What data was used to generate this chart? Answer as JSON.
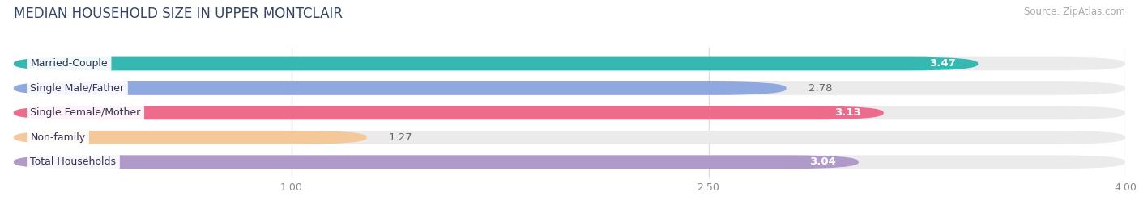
{
  "title": "MEDIAN HOUSEHOLD SIZE IN UPPER MONTCLAIR",
  "source": "Source: ZipAtlas.com",
  "categories": [
    "Married-Couple",
    "Single Male/Father",
    "Single Female/Mother",
    "Non-family",
    "Total Households"
  ],
  "values": [
    3.47,
    2.78,
    3.13,
    1.27,
    3.04
  ],
  "bar_colors": [
    "#35b8b2",
    "#90a8e0",
    "#ee6b8b",
    "#f5c89a",
    "#b09aca"
  ],
  "value_in_bar": [
    true,
    false,
    true,
    false,
    true
  ],
  "xmin": 0.0,
  "xmax": 4.0,
  "xtick_values": [
    1.0,
    2.5,
    4.0
  ],
  "xtick_labels": [
    "1.00",
    "2.50",
    "4.00"
  ],
  "title_fontsize": 12,
  "source_fontsize": 8.5,
  "bar_label_fontsize": 9.5,
  "category_fontsize": 9,
  "background_color": "#ffffff",
  "bar_bg_color": "#ebebeb",
  "grid_color": "#dddddd"
}
